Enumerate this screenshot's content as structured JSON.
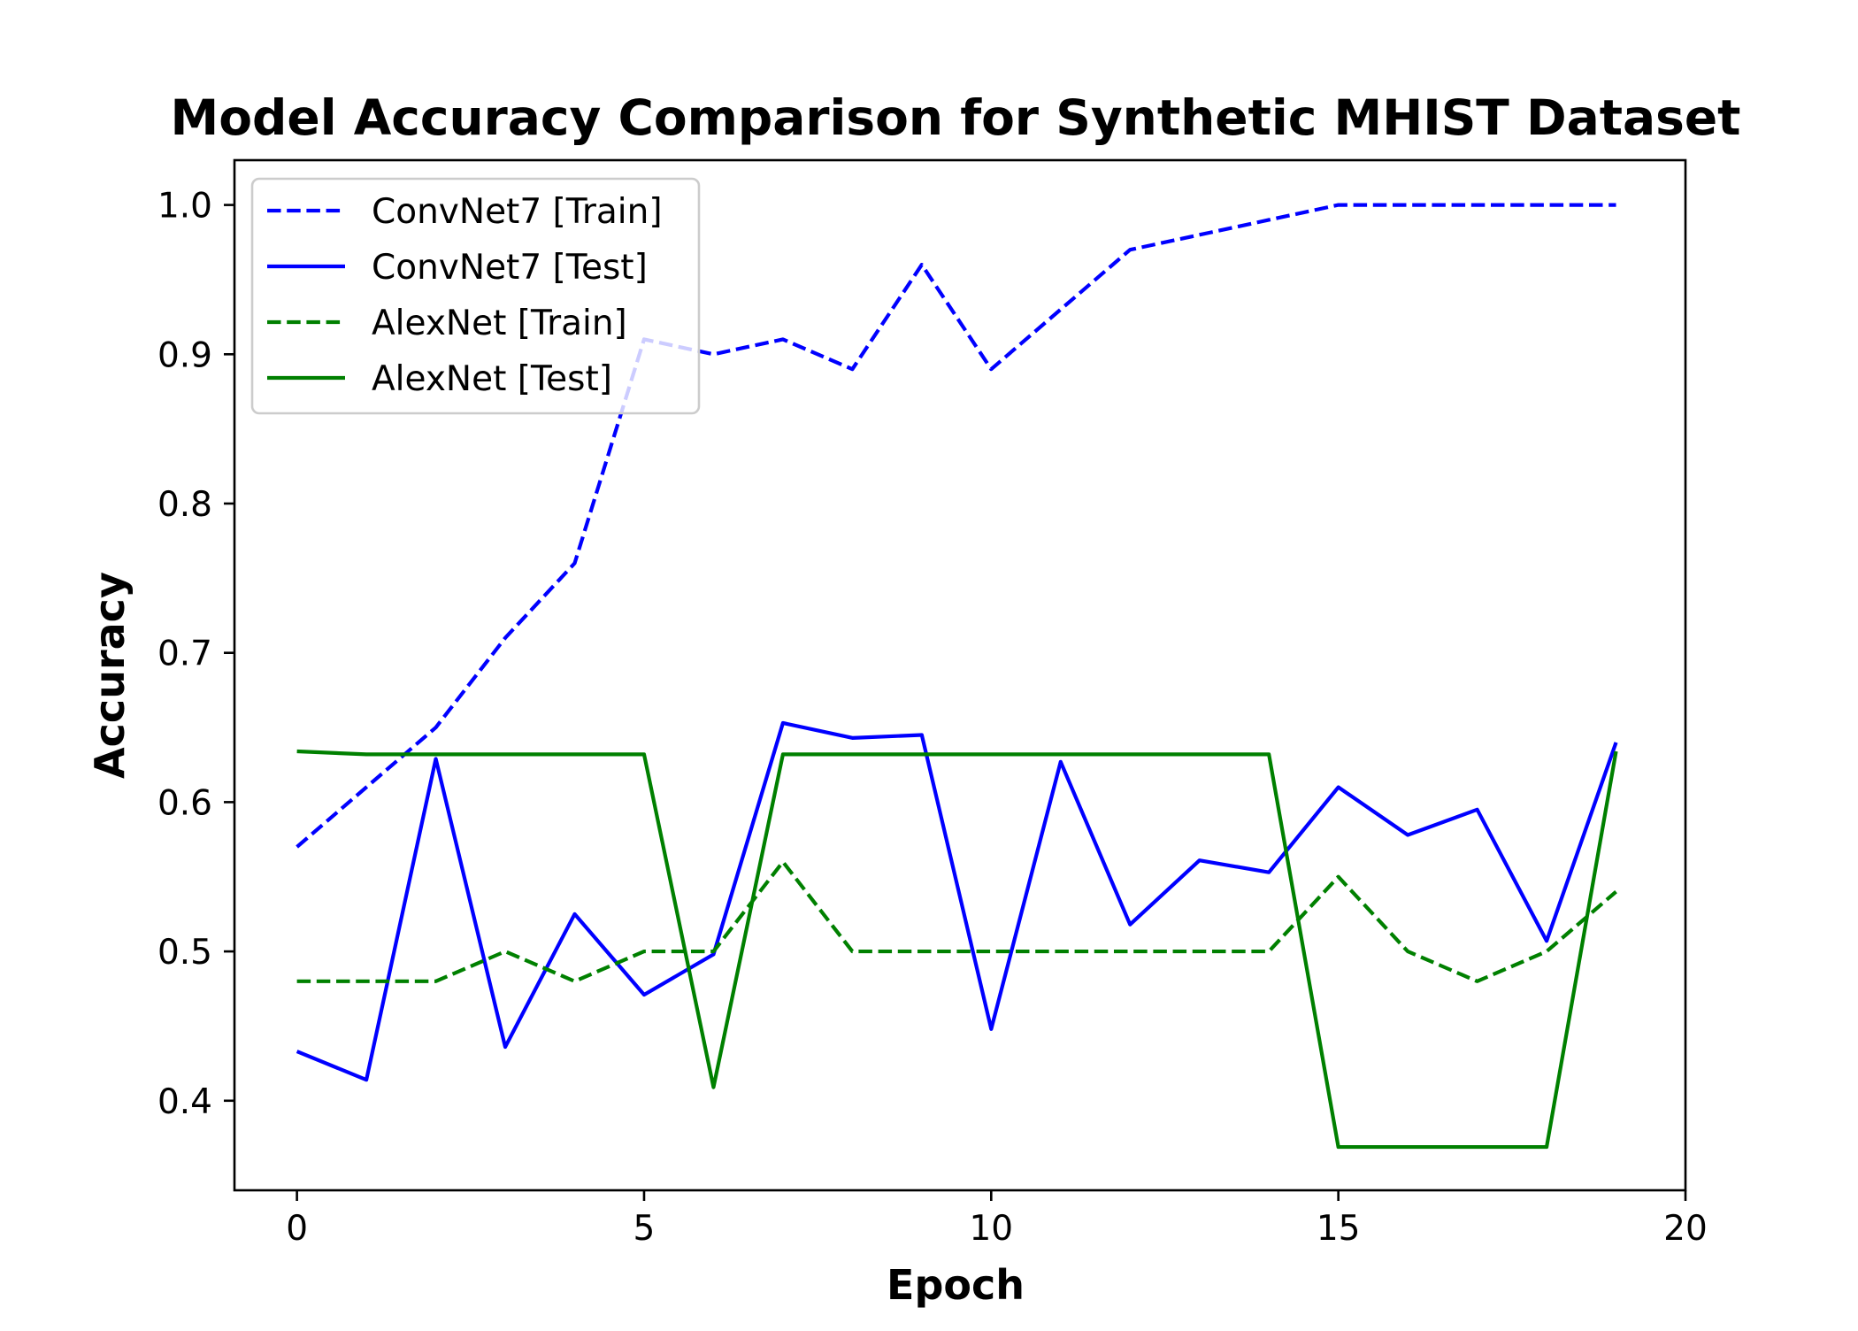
{
  "chart_data": {
    "type": "line",
    "title": "Model Accuracy Comparison for Synthetic MHIST Dataset",
    "xlabel": "Epoch",
    "ylabel": "Accuracy",
    "xlim": [
      -0.9,
      20
    ],
    "ylim": [
      0.34,
      1.03
    ],
    "xticks": [
      0,
      5,
      10,
      15,
      20
    ],
    "xtick_labels": [
      "0",
      "5",
      "10",
      "15",
      "20"
    ],
    "yticks": [
      0.4,
      0.5,
      0.6,
      0.7,
      0.8,
      0.9,
      1.0
    ],
    "ytick_labels": [
      "0.4",
      "0.5",
      "0.6",
      "0.7",
      "0.8",
      "0.9",
      "1.0"
    ],
    "grid": false,
    "legend_position": "top-left",
    "x": [
      0,
      1,
      2,
      3,
      4,
      5,
      6,
      7,
      8,
      9,
      10,
      11,
      12,
      13,
      14,
      15,
      16,
      17,
      18,
      19
    ],
    "series": [
      {
        "name": "ConvNet7 [Train]",
        "color": "#0000ff",
        "dash": "dashed",
        "values": [
          0.57,
          0.61,
          0.65,
          0.71,
          0.76,
          0.91,
          0.9,
          0.91,
          0.89,
          0.96,
          0.89,
          0.93,
          0.97,
          0.98,
          0.99,
          1.0,
          1.0,
          1.0,
          1.0,
          1.0
        ]
      },
      {
        "name": "ConvNet7 [Test]",
        "color": "#0000ff",
        "dash": "solid",
        "values": [
          0.433,
          0.414,
          0.629,
          0.436,
          0.525,
          0.471,
          0.498,
          0.653,
          0.643,
          0.645,
          0.448,
          0.627,
          0.518,
          0.561,
          0.553,
          0.61,
          0.578,
          0.595,
          0.507,
          0.64
        ]
      },
      {
        "name": "AlexNet [Train]",
        "color": "#008000",
        "dash": "dashed",
        "values": [
          0.48,
          0.48,
          0.48,
          0.5,
          0.48,
          0.5,
          0.5,
          0.56,
          0.5,
          0.5,
          0.5,
          0.5,
          0.5,
          0.5,
          0.5,
          0.55,
          0.5,
          0.48,
          0.5,
          0.54
        ]
      },
      {
        "name": "AlexNet [Test]",
        "color": "#008000",
        "dash": "solid",
        "values": [
          0.634,
          0.632,
          0.632,
          0.632,
          0.632,
          0.632,
          0.409,
          0.632,
          0.632,
          0.632,
          0.632,
          0.632,
          0.632,
          0.632,
          0.632,
          0.369,
          0.369,
          0.369,
          0.369,
          0.634
        ]
      }
    ]
  }
}
